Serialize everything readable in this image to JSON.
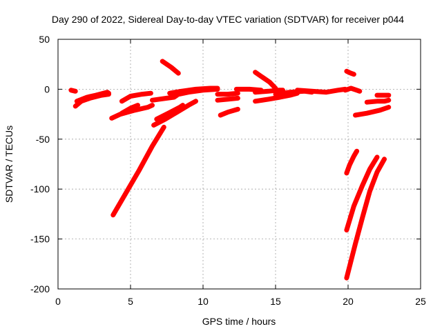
{
  "chart_data": {
    "type": "scatter",
    "title": "Day 290 of 2022, Sidereal Day-to-day VTEC variation (SDTVAR) for receiver p044",
    "xlabel": "GPS time / hours",
    "ylabel": "SDTVAR / TECUs",
    "xlim": [
      0,
      25
    ],
    "ylim": [
      -200,
      50
    ],
    "xticks": [
      0,
      5,
      10,
      15,
      20,
      25
    ],
    "xtick_labels": [
      "0",
      "5",
      "10",
      "15",
      "20",
      "25"
    ],
    "yticks": [
      -200,
      -150,
      -100,
      -50,
      0,
      50
    ],
    "ytick_labels": [
      "-200",
      "-150",
      "-100",
      "-50",
      "0",
      "50"
    ],
    "grid": true,
    "legend": "none",
    "series": [
      {
        "name": "SDTVAR",
        "color": "#ff0000",
        "marker": "plus",
        "segments": [
          [
            [
              0.9,
              -1
            ],
            [
              1.2,
              -2
            ]
          ],
          [
            [
              1.2,
              -17
            ],
            [
              1.6,
              -12
            ],
            [
              2.2,
              -9
            ],
            [
              3.0,
              -6
            ],
            [
              3.5,
              -5
            ]
          ],
          [
            [
              1.3,
              -12
            ],
            [
              2.0,
              -8
            ],
            [
              2.6,
              -6
            ],
            [
              3.4,
              -3
            ],
            [
              3.5,
              -4
            ]
          ],
          [
            [
              3.7,
              -29
            ],
            [
              4.3,
              -25
            ],
            [
              5.3,
              -21
            ],
            [
              6.2,
              -18
            ],
            [
              6.5,
              -16
            ]
          ],
          [
            [
              4.4,
              -24
            ],
            [
              5.0,
              -19
            ],
            [
              5.5,
              -16
            ]
          ],
          [
            [
              4.4,
              -12
            ],
            [
              5.0,
              -7
            ],
            [
              5.8,
              -5
            ],
            [
              6.4,
              -4
            ]
          ],
          [
            [
              3.8,
              -126
            ],
            [
              4.6,
              -106
            ],
            [
              5.6,
              -81
            ],
            [
              6.5,
              -57
            ],
            [
              7.3,
              -38
            ]
          ],
          [
            [
              6.6,
              -36
            ],
            [
              7.4,
              -30
            ],
            [
              8.2,
              -23
            ],
            [
              9.0,
              -16
            ],
            [
              9.5,
              -12
            ]
          ],
          [
            [
              6.8,
              -30
            ],
            [
              7.6,
              -24
            ],
            [
              8.4,
              -18
            ],
            [
              8.6,
              -16
            ]
          ],
          [
            [
              6.5,
              -11
            ],
            [
              7.5,
              -9
            ],
            [
              8.0,
              -8
            ],
            [
              8.2,
              -6
            ]
          ],
          [
            [
              7.2,
              28
            ],
            [
              7.8,
              22
            ],
            [
              8.3,
              16
            ]
          ],
          [
            [
              7.7,
              -4
            ],
            [
              8.5,
              -2
            ],
            [
              9.5,
              0
            ],
            [
              10.5,
              1
            ],
            [
              11.0,
              1
            ]
          ],
          [
            [
              8.0,
              -6
            ],
            [
              9.0,
              -3
            ],
            [
              10.0,
              -1
            ],
            [
              11.0,
              0
            ]
          ],
          [
            [
              11.0,
              -5
            ],
            [
              11.7,
              -5
            ],
            [
              12.4,
              -4
            ]
          ],
          [
            [
              11.0,
              -11
            ],
            [
              11.7,
              -10
            ],
            [
              12.4,
              -9
            ]
          ],
          [
            [
              11.2,
              -26
            ],
            [
              11.7,
              -23
            ],
            [
              12.4,
              -20
            ]
          ],
          [
            [
              12.3,
              0
            ],
            [
              13.2,
              0
            ],
            [
              14.0,
              -1
            ]
          ],
          [
            [
              13.6,
              17
            ],
            [
              14.0,
              13
            ],
            [
              14.6,
              7
            ],
            [
              15.0,
              1
            ]
          ],
          [
            [
              13.6,
              -3
            ],
            [
              14.5,
              -2
            ],
            [
              15.2,
              -1
            ],
            [
              15.5,
              -1
            ]
          ],
          [
            [
              13.6,
              -12
            ],
            [
              14.5,
              -10
            ],
            [
              15.3,
              -8
            ],
            [
              16.0,
              -6
            ],
            [
              16.5,
              -4
            ]
          ],
          [
            [
              15.0,
              -5
            ],
            [
              16.0,
              -3
            ],
            [
              17.0,
              -2
            ],
            [
              17.5,
              -3
            ]
          ],
          [
            [
              16.5,
              -1
            ],
            [
              17.5,
              -2
            ],
            [
              18.5,
              -3
            ],
            [
              19.3,
              -1
            ],
            [
              19.8,
              0
            ]
          ],
          [
            [
              19.9,
              18
            ],
            [
              20.2,
              16
            ],
            [
              20.4,
              15
            ]
          ],
          [
            [
              19.8,
              -1
            ],
            [
              20.2,
              1
            ],
            [
              20.6,
              -1
            ],
            [
              20.8,
              -2
            ]
          ],
          [
            [
              20.5,
              -26
            ],
            [
              21.3,
              -24
            ],
            [
              22.2,
              -21
            ],
            [
              22.8,
              -18
            ]
          ],
          [
            [
              21.3,
              -13
            ],
            [
              22.0,
              -12
            ],
            [
              22.5,
              -12
            ],
            [
              22.8,
              -11
            ]
          ],
          [
            [
              22.0,
              -6
            ],
            [
              22.8,
              -6
            ]
          ],
          [
            [
              19.9,
              -84
            ],
            [
              20.1,
              -76
            ],
            [
              20.4,
              -67
            ],
            [
              20.6,
              -62
            ]
          ],
          [
            [
              19.9,
              -141
            ],
            [
              20.4,
              -117
            ],
            [
              21.0,
              -96
            ],
            [
              21.5,
              -80
            ],
            [
              22.0,
              -68
            ]
          ],
          [
            [
              19.9,
              -189
            ],
            [
              20.5,
              -155
            ],
            [
              21.0,
              -128
            ],
            [
              21.5,
              -102
            ],
            [
              22.0,
              -83
            ],
            [
              22.5,
              -70
            ]
          ]
        ]
      }
    ]
  }
}
